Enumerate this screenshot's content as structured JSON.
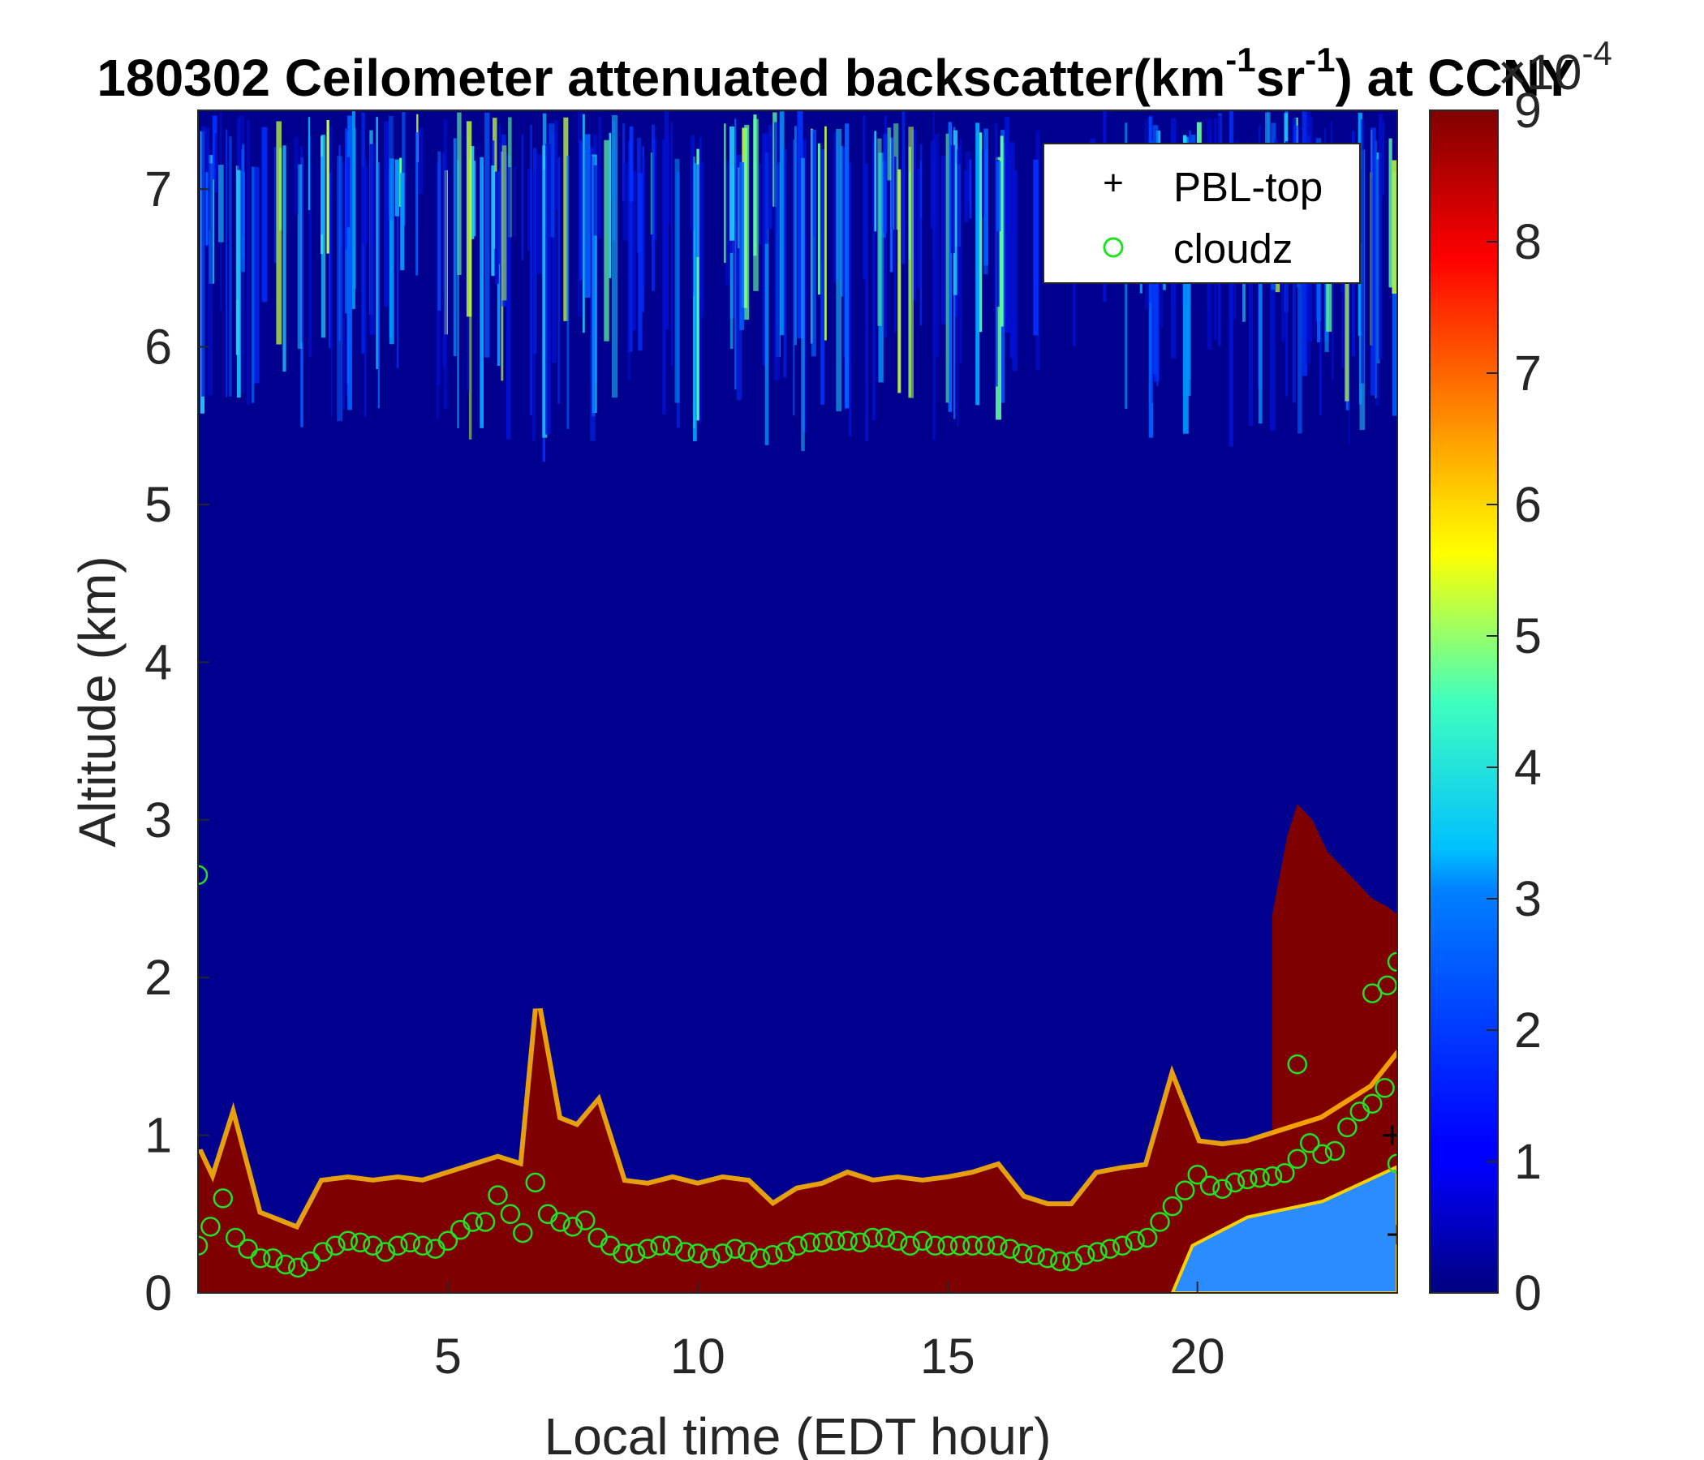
{
  "chart_data": {
    "type": "heatmap",
    "title": {
      "prefix": "180302 Ceilometer attenuated backscatter(km",
      "sup1": "-1",
      "mid": "sr",
      "sup2": "-1",
      "suffix": ") at CCNY"
    },
    "xlabel": "Local time (EDT hour)",
    "ylabel": "Altitude (km)",
    "xlim": [
      0,
      24
    ],
    "ylim": [
      0,
      7.5
    ],
    "x_ticks": [
      5,
      10,
      15,
      20
    ],
    "y_ticks": [
      0,
      1,
      2,
      3,
      4,
      5,
      6,
      7
    ],
    "colorbar": {
      "colormap": "jet",
      "range": [
        0,
        9
      ],
      "ticks": [
        0,
        1,
        2,
        3,
        4,
        5,
        6,
        7,
        8,
        9
      ],
      "exponent_base": "×10",
      "exponent_power": "-4"
    },
    "legend": {
      "position": "top-right",
      "entries": [
        {
          "marker": "+",
          "label": "PBL-top",
          "color": "#000000"
        },
        {
          "marker": "o",
          "label": "cloudz",
          "color": "#22e022"
        }
      ]
    },
    "boundary_layer_top_km": {
      "x": [
        0,
        0.3,
        0.7,
        1.2,
        1.6,
        2.0,
        2.5,
        3.0,
        3.5,
        4.0,
        4.5,
        5.0,
        5.5,
        6.0,
        6.5,
        6.8,
        7.2,
        7.6,
        8.0,
        8.5,
        9.0,
        9.5,
        10.0,
        10.5,
        11.0,
        11.5,
        12.0,
        12.5,
        13.0,
        13.5,
        14.0,
        14.5,
        15.0,
        15.5,
        16.0,
        16.5,
        17.0,
        17.5,
        18.0,
        18.5,
        19.0,
        19.5,
        20.0,
        20.5,
        21.0,
        21.5,
        22.0,
        22.5,
        23.0,
        23.5,
        24.0
      ],
      "y": [
        0.9,
        0.7,
        1.1,
        0.5,
        0.45,
        0.4,
        0.7,
        0.72,
        0.7,
        0.72,
        0.7,
        0.75,
        0.8,
        0.85,
        0.8,
        1.8,
        1.1,
        1.05,
        1.2,
        0.7,
        0.68,
        0.72,
        0.68,
        0.72,
        0.7,
        0.55,
        0.65,
        0.68,
        0.75,
        0.7,
        0.72,
        0.7,
        0.72,
        0.75,
        0.8,
        0.6,
        0.55,
        0.55,
        0.75,
        0.78,
        0.8,
        1.35,
        0.95,
        0.93,
        0.95,
        1.0,
        1.05,
        1.1,
        1.2,
        1.3,
        1.5
      ]
    },
    "cloud_band_top_km": {
      "x": [
        21.5,
        21.8,
        22.0,
        22.3,
        22.6,
        22.9,
        23.2,
        23.5,
        23.8,
        24.0
      ],
      "y": [
        2.4,
        2.9,
        3.1,
        3.0,
        2.8,
        2.7,
        2.6,
        2.5,
        2.45,
        2.4
      ]
    },
    "cloudz": {
      "x": [
        0.0,
        0.25,
        0.5,
        0.75,
        1.0,
        1.25,
        1.5,
        1.75,
        2.0,
        2.25,
        2.5,
        2.75,
        3.0,
        3.25,
        3.5,
        3.75,
        4.0,
        4.25,
        4.5,
        4.75,
        5.0,
        5.25,
        5.5,
        5.75,
        6.0,
        6.25,
        6.5,
        6.75,
        7.0,
        7.25,
        7.5,
        7.75,
        8.0,
        8.25,
        8.5,
        8.75,
        9.0,
        9.25,
        9.5,
        9.75,
        10.0,
        10.25,
        10.5,
        10.75,
        11.0,
        11.25,
        11.5,
        11.75,
        12.0,
        12.25,
        12.5,
        12.75,
        13.0,
        13.25,
        13.5,
        13.75,
        14.0,
        14.25,
        14.5,
        14.75,
        15.0,
        15.25,
        15.5,
        15.75,
        16.0,
        16.25,
        16.5,
        16.75,
        17.0,
        17.25,
        17.5,
        17.75,
        18.0,
        18.25,
        18.5,
        18.75,
        19.0,
        19.25,
        19.5,
        19.75,
        20.0,
        20.25,
        20.5,
        20.75,
        21.0,
        21.25,
        21.5,
        21.75,
        22.0,
        22.25,
        22.5,
        22.75,
        23.0,
        23.25,
        23.5,
        23.75,
        24.0,
        0.0,
        22.0,
        23.5,
        23.8,
        24.0
      ],
      "y": [
        0.3,
        0.42,
        0.6,
        0.35,
        0.28,
        0.22,
        0.22,
        0.18,
        0.16,
        0.2,
        0.26,
        0.3,
        0.33,
        0.32,
        0.3,
        0.26,
        0.3,
        0.32,
        0.3,
        0.28,
        0.33,
        0.4,
        0.45,
        0.45,
        0.62,
        0.5,
        0.38,
        0.7,
        0.5,
        0.45,
        0.42,
        0.46,
        0.35,
        0.3,
        0.25,
        0.25,
        0.28,
        0.3,
        0.3,
        0.26,
        0.25,
        0.22,
        0.25,
        0.28,
        0.26,
        0.22,
        0.24,
        0.26,
        0.3,
        0.32,
        0.32,
        0.33,
        0.33,
        0.32,
        0.35,
        0.35,
        0.33,
        0.3,
        0.33,
        0.3,
        0.3,
        0.3,
        0.3,
        0.3,
        0.3,
        0.28,
        0.25,
        0.24,
        0.22,
        0.2,
        0.2,
        0.24,
        0.26,
        0.28,
        0.3,
        0.33,
        0.35,
        0.45,
        0.55,
        0.65,
        0.75,
        0.68,
        0.66,
        0.7,
        0.72,
        0.73,
        0.74,
        0.76,
        0.85,
        0.95,
        0.88,
        0.9,
        1.05,
        1.15,
        1.2,
        1.3,
        0.82,
        2.65,
        1.45,
        1.9,
        1.95,
        2.1
      ]
    },
    "pbl_top": {
      "x": [
        23.9,
        24.0
      ],
      "y": [
        1.0,
        0.37
      ]
    },
    "upper_aerosol_region_km": [
      5.5,
      7.5
    ]
  }
}
